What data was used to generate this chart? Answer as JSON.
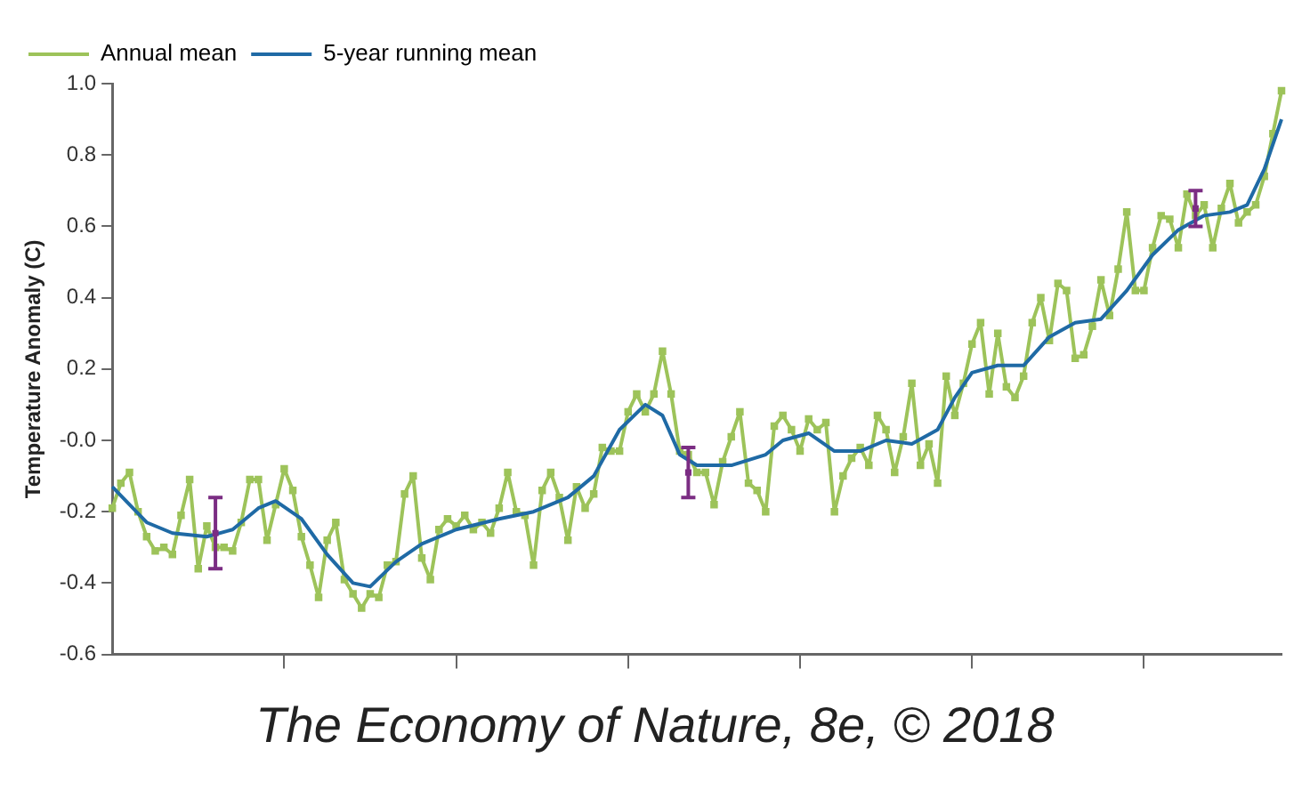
{
  "chart_data": {
    "type": "line",
    "ylabel": "Temperature Anomaly (C)",
    "annotations": [
      "The Economy of Nature, 8e, © 2018"
    ],
    "categories": [
      null,
      null,
      null,
      null,
      null,
      null,
      null,
      null,
      null,
      null,
      null,
      null,
      null,
      null,
      null,
      null,
      null,
      null,
      null,
      null,
      null,
      null,
      null,
      null,
      null,
      null,
      null,
      null,
      null,
      null,
      null,
      null,
      null,
      null,
      null,
      null,
      null,
      null,
      null,
      null,
      null,
      null,
      null,
      null,
      null,
      null,
      null,
      null,
      null,
      null,
      null,
      null,
      null,
      null,
      null,
      null,
      null,
      null,
      null,
      null,
      null,
      null,
      null,
      null,
      null,
      null,
      null,
      null,
      null,
      null,
      null,
      null,
      null,
      null,
      null,
      null,
      null,
      null,
      null,
      null,
      null,
      null,
      null,
      null,
      null,
      null,
      null,
      null,
      null,
      null,
      null,
      null,
      null,
      null,
      null,
      null,
      null,
      null,
      null,
      null,
      null,
      null,
      null,
      null,
      null,
      null,
      null,
      null,
      null,
      null,
      null,
      null,
      null,
      null,
      null,
      null,
      null,
      null,
      null,
      null,
      null,
      null,
      null,
      null,
      null,
      null,
      null,
      null,
      null,
      null,
      null,
      null,
      null,
      null,
      null,
      null,
      null
    ],
    "ylim": [
      -0.6,
      1.0
    ],
    "yticks": [
      {
        "value": -0.6,
        "label": "-0.6"
      },
      {
        "value": -0.4,
        "label": "-0.4"
      },
      {
        "value": -0.2,
        "label": "-0.2"
      },
      {
        "value": 0,
        "label": "-0.0"
      },
      {
        "value": 0.2,
        "label": "0.2"
      },
      {
        "value": 0.4,
        "label": "0.4"
      },
      {
        "value": 0.6,
        "label": "0.6"
      },
      {
        "value": 0.8,
        "label": "0.8"
      },
      {
        "value": 1.0,
        "label": "1.0"
      }
    ],
    "tick_labels": "y",
    "legend": "top left",
    "line_style": "solid",
    "series": [
      {
        "name": "Annual mean",
        "type": "line",
        "marker": "square",
        "color": "#9dc35a",
        "values": [
          -0.19,
          -0.12,
          -0.09,
          -0.2,
          -0.27,
          -0.31,
          -0.3,
          -0.32,
          -0.21,
          -0.11,
          -0.36,
          -0.24,
          -0.3,
          -0.3,
          -0.31,
          -0.23,
          -0.11,
          -0.11,
          -0.28,
          -0.18,
          -0.08,
          -0.14,
          -0.27,
          -0.35,
          -0.44,
          -0.28,
          -0.23,
          -0.39,
          -0.43,
          -0.47,
          -0.43,
          -0.44,
          -0.35,
          -0.34,
          -0.15,
          -0.1,
          -0.33,
          -0.39,
          -0.25,
          -0.22,
          -0.24,
          -0.21,
          -0.25,
          -0.23,
          -0.26,
          -0.19,
          -0.09,
          -0.2,
          -0.21,
          -0.35,
          -0.14,
          -0.09,
          -0.16,
          -0.28,
          -0.13,
          -0.19,
          -0.15,
          -0.02,
          -0.03,
          -0.03,
          0.08,
          0.13,
          0.08,
          0.13,
          0.25,
          0.13,
          -0.03,
          -0.04,
          -0.09,
          -0.09,
          -0.18,
          -0.06,
          0.01,
          0.08,
          -0.12,
          -0.14,
          -0.2,
          0.04,
          0.07,
          0.03,
          -0.03,
          0.06,
          0.03,
          0.05,
          -0.2,
          -0.1,
          -0.05,
          -0.02,
          -0.07,
          0.07,
          0.03,
          -0.09,
          0.01,
          0.16,
          -0.07,
          -0.01,
          -0.12,
          0.18,
          0.07,
          0.16,
          0.27,
          0.33,
          0.13,
          0.3,
          0.15,
          0.12,
          0.18,
          0.33,
          0.4,
          0.28,
          0.44,
          0.42,
          0.23,
          0.24,
          0.32,
          0.45,
          0.35,
          0.48,
          0.64,
          0.42,
          0.42,
          0.54,
          0.63,
          0.62,
          0.54,
          0.69,
          0.63,
          0.66,
          0.54,
          0.65,
          0.72,
          0.61,
          0.64,
          0.66,
          0.74,
          0.86,
          0.98
        ]
      },
      {
        "name": "5-year running mean",
        "type": "line",
        "marker": "none",
        "color": "#1f6aa5",
        "values": [
          -0.13,
          null,
          null,
          null,
          -0.23,
          null,
          null,
          -0.26,
          null,
          null,
          null,
          -0.27,
          null,
          null,
          -0.25,
          null,
          null,
          -0.19,
          null,
          -0.17,
          null,
          null,
          -0.22,
          null,
          null,
          -0.32,
          null,
          null,
          -0.4,
          null,
          -0.41,
          null,
          null,
          -0.34,
          null,
          null,
          -0.29,
          null,
          null,
          null,
          -0.25,
          null,
          null,
          null,
          null,
          -0.22,
          null,
          null,
          null,
          -0.2,
          null,
          null,
          null,
          -0.16,
          null,
          null,
          -0.1,
          null,
          null,
          0.03,
          null,
          null,
          0.1,
          null,
          0.07,
          null,
          -0.04,
          null,
          -0.07,
          null,
          null,
          null,
          -0.07,
          null,
          null,
          null,
          -0.04,
          null,
          0.0,
          null,
          null,
          0.02,
          null,
          null,
          -0.03,
          null,
          null,
          -0.03,
          null,
          null,
          0.0,
          null,
          null,
          -0.01,
          null,
          null,
          0.03,
          null,
          0.12,
          null,
          0.19,
          null,
          null,
          0.21,
          null,
          null,
          0.21,
          null,
          null,
          0.29,
          null,
          null,
          0.33,
          null,
          null,
          0.34,
          null,
          null,
          0.42,
          null,
          null,
          0.52,
          null,
          null,
          0.59,
          null,
          null,
          0.63,
          null,
          null,
          0.64,
          null,
          0.66,
          null,
          0.76,
          null,
          0.9
        ]
      },
      {
        "type": "scatter",
        "color": "#7b2d83",
        "values": [
          null,
          null,
          null,
          null,
          null,
          null,
          null,
          null,
          null,
          null,
          null,
          null,
          -0.26,
          null,
          null,
          null,
          null,
          null,
          null,
          null,
          null,
          null,
          null,
          null,
          null,
          null,
          null,
          null,
          null,
          null,
          null,
          null,
          null,
          null,
          null,
          null,
          null,
          null,
          null,
          null,
          null,
          null,
          null,
          null,
          null,
          null,
          null,
          null,
          null,
          null,
          null,
          null,
          null,
          null,
          null,
          null,
          null,
          null,
          null,
          null,
          null,
          null,
          null,
          null,
          null,
          null,
          null,
          -0.09,
          null,
          null,
          null,
          null,
          null,
          null,
          null,
          null,
          null,
          null,
          null,
          null,
          null,
          null,
          null,
          null,
          null,
          null,
          null,
          null,
          null,
          null,
          null,
          null,
          null,
          null,
          null,
          null,
          null,
          null,
          null,
          null,
          null,
          null,
          null,
          null,
          null,
          null,
          null,
          null,
          null,
          null,
          null,
          null,
          null,
          null,
          null,
          null,
          null,
          null,
          null,
          null,
          null,
          null,
          null,
          null,
          null,
          null,
          0.65,
          null,
          null,
          null,
          null,
          null,
          null,
          null,
          null,
          null,
          null
        ],
        "errors": [
          null,
          null,
          null,
          null,
          null,
          null,
          null,
          null,
          null,
          null,
          null,
          null,
          0.1,
          null,
          null,
          null,
          null,
          null,
          null,
          null,
          null,
          null,
          null,
          null,
          null,
          null,
          null,
          null,
          null,
          null,
          null,
          null,
          null,
          null,
          null,
          null,
          null,
          null,
          null,
          null,
          null,
          null,
          null,
          null,
          null,
          null,
          null,
          null,
          null,
          null,
          null,
          null,
          null,
          null,
          null,
          null,
          null,
          null,
          null,
          null,
          null,
          null,
          null,
          null,
          null,
          null,
          null,
          0.07,
          null,
          null,
          null,
          null,
          null,
          null,
          null,
          null,
          null,
          null,
          null,
          null,
          null,
          null,
          null,
          null,
          null,
          null,
          null,
          null,
          null,
          null,
          null,
          null,
          null,
          null,
          null,
          null,
          null,
          null,
          null,
          null,
          null,
          null,
          null,
          null,
          null,
          null,
          null,
          null,
          null,
          null,
          null,
          null,
          null,
          null,
          null,
          null,
          null,
          null,
          null,
          null,
          null,
          null,
          null,
          null,
          null,
          null,
          0.05,
          null,
          null,
          null,
          null,
          null,
          null,
          null,
          null,
          null,
          null
        ]
      }
    ]
  }
}
